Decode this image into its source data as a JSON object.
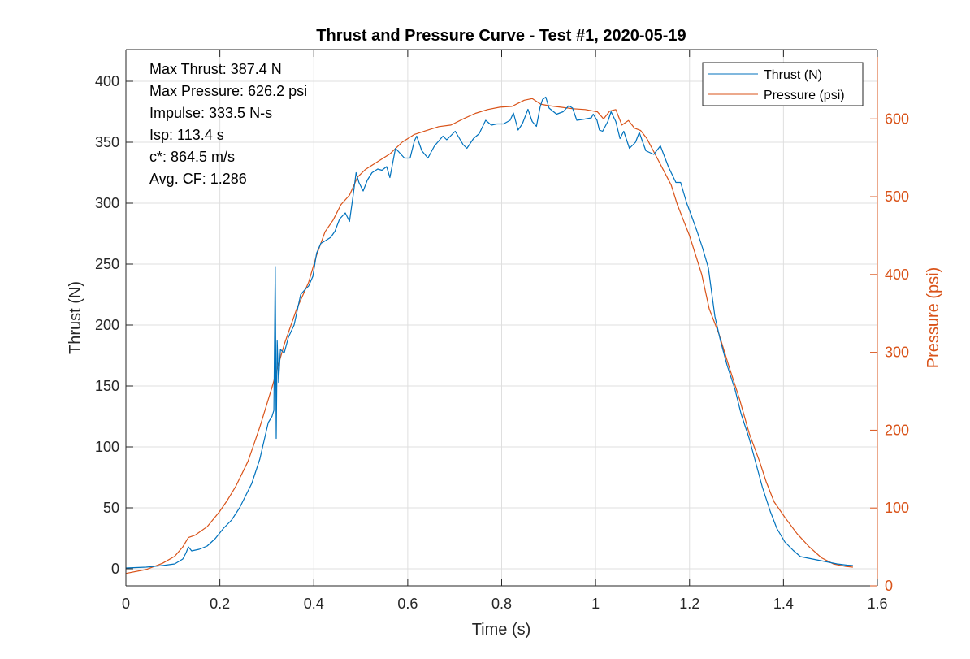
{
  "chart_data": {
    "type": "line",
    "title": "Thrust and Pressure Curve - Test #1, 2020-05-19",
    "xlabel": "Time (s)",
    "ylabel": "Thrust (N)",
    "ylabel_right": "Pressure (psi)",
    "xlim": [
      0,
      1.6
    ],
    "ylim": [
      -14,
      426
    ],
    "ylim_right": [
      0,
      689
    ],
    "xticks": [
      0,
      0.2,
      0.4,
      0.6,
      0.8,
      1,
      1.2,
      1.4,
      1.6
    ],
    "xtick_labels": [
      "0",
      "0.2",
      "0.4",
      "0.6",
      "0.8",
      "1",
      "1.2",
      "1.4",
      "1.6"
    ],
    "yticks": [
      0,
      50,
      100,
      150,
      200,
      250,
      300,
      350,
      400
    ],
    "ytick_labels": [
      "0",
      "50",
      "100",
      "150",
      "200",
      "250",
      "300",
      "350",
      "400"
    ],
    "yticks_right": [
      0,
      100,
      200,
      300,
      400,
      500,
      600
    ],
    "ytick_labels_right": [
      "0",
      "100",
      "200",
      "300",
      "400",
      "500",
      "600"
    ],
    "grid": true,
    "legend_position": "top-right",
    "annotations": [
      "Max Thrust: 387.4 N",
      "Max Pressure: 626.2 psi",
      "Impulse: 333.5 N-s",
      "Isp: 113.4 s",
      "c*: 864.5 m/s",
      "Avg. CF: 1.286"
    ],
    "series": [
      {
        "name": "Thrust (N)",
        "axis": "left",
        "color": "#0072BD",
        "x": [
          0,
          0.043,
          0.078,
          0.104,
          0.121,
          0.128,
          0.133,
          0.14,
          0.156,
          0.173,
          0.19,
          0.208,
          0.225,
          0.242,
          0.268,
          0.285,
          0.303,
          0.311,
          0.315,
          0.318,
          0.32,
          0.322,
          0.325,
          0.329,
          0.337,
          0.346,
          0.358,
          0.372,
          0.381,
          0.389,
          0.398,
          0.406,
          0.415,
          0.424,
          0.436,
          0.445,
          0.455,
          0.467,
          0.476,
          0.484,
          0.49,
          0.496,
          0.505,
          0.514,
          0.524,
          0.536,
          0.545,
          0.555,
          0.562,
          0.574,
          0.593,
          0.605,
          0.614,
          0.619,
          0.63,
          0.643,
          0.657,
          0.675,
          0.683,
          0.701,
          0.718,
          0.726,
          0.74,
          0.752,
          0.766,
          0.778,
          0.79,
          0.804,
          0.818,
          0.825,
          0.835,
          0.844,
          0.856,
          0.865,
          0.874,
          0.882,
          0.887,
          0.894,
          0.901,
          0.917,
          0.931,
          0.943,
          0.951,
          0.96,
          0.977,
          0.991,
          0.995,
          1.003,
          1.008,
          1.015,
          1.026,
          1.033,
          1.043,
          1.052,
          1.06,
          1.072,
          1.085,
          1.093,
          1.107,
          1.124,
          1.138,
          1.147,
          1.155,
          1.161,
          1.171,
          1.181,
          1.194,
          1.202,
          1.216,
          1.228,
          1.24,
          1.254,
          1.266,
          1.28,
          1.297,
          1.31,
          1.327,
          1.341,
          1.355,
          1.372,
          1.386,
          1.403,
          1.421,
          1.436,
          1.462,
          1.488,
          1.514,
          1.535,
          1.548
        ],
        "y": [
          0.7,
          1.3,
          2.7,
          4,
          8,
          13,
          18,
          14.7,
          16,
          18.7,
          24.7,
          33.3,
          40,
          50,
          70,
          90,
          120,
          125,
          130,
          248,
          107,
          187,
          153,
          180,
          177,
          190,
          200,
          225,
          229,
          232,
          240,
          259,
          267,
          269,
          272,
          277,
          287,
          292,
          285,
          307,
          325,
          317,
          310,
          319,
          325,
          328,
          327,
          330,
          321,
          345,
          337,
          337,
          351,
          355,
          343,
          337,
          347,
          355,
          352,
          359,
          348,
          345,
          353,
          357,
          368,
          364,
          365,
          365,
          368,
          374,
          360,
          365,
          377,
          367,
          363,
          379,
          385,
          387,
          378,
          373,
          375,
          380,
          378,
          368,
          369,
          370,
          373,
          368,
          360,
          359,
          367,
          375,
          367,
          353,
          359,
          345,
          350,
          358,
          343,
          340,
          347,
          338,
          330,
          325,
          317,
          317,
          300,
          292,
          277,
          263,
          247,
          207,
          187,
          167,
          147,
          127,
          107,
          87,
          67,
          47,
          33,
          22,
          15,
          10,
          8,
          6,
          4,
          3,
          2.7
        ]
      },
      {
        "name": "Pressure (psi)",
        "axis": "right",
        "color": "#D95319",
        "x": [
          0,
          0.043,
          0.078,
          0.104,
          0.121,
          0.133,
          0.147,
          0.173,
          0.199,
          0.216,
          0.234,
          0.26,
          0.285,
          0.311,
          0.337,
          0.363,
          0.389,
          0.406,
          0.424,
          0.441,
          0.458,
          0.476,
          0.493,
          0.51,
          0.536,
          0.562,
          0.588,
          0.614,
          0.64,
          0.666,
          0.692,
          0.718,
          0.744,
          0.77,
          0.796,
          0.822,
          0.848,
          0.865,
          0.883,
          0.9,
          0.926,
          0.952,
          0.978,
          1.004,
          1.017,
          1.03,
          1.043,
          1.056,
          1.07,
          1.083,
          1.096,
          1.109,
          1.122,
          1.135,
          1.148,
          1.161,
          1.174,
          1.187,
          1.2,
          1.213,
          1.226,
          1.242,
          1.263,
          1.284,
          1.306,
          1.327,
          1.349,
          1.363,
          1.38,
          1.403,
          1.429,
          1.455,
          1.481,
          1.507,
          1.533,
          1.548
        ],
        "y": [
          16,
          21,
          29,
          38,
          50,
          62,
          65,
          76,
          95,
          110,
          128,
          160,
          204,
          255,
          310,
          355,
          390,
          425,
          455,
          470,
          490,
          502,
          525,
          535,
          545,
          555,
          570,
          580,
          585,
          590,
          592,
          600,
          607,
          612,
          615,
          616,
          624,
          626,
          619,
          617,
          615,
          613,
          612,
          609,
          600,
          610,
          612,
          592,
          598,
          588,
          585,
          575,
          560,
          545,
          530,
          515,
          490,
          470,
          450,
          425,
          400,
          356,
          323,
          282,
          241,
          196,
          160,
          134,
          108,
          88,
          67,
          50,
          36,
          28,
          25,
          24
        ]
      }
    ]
  }
}
